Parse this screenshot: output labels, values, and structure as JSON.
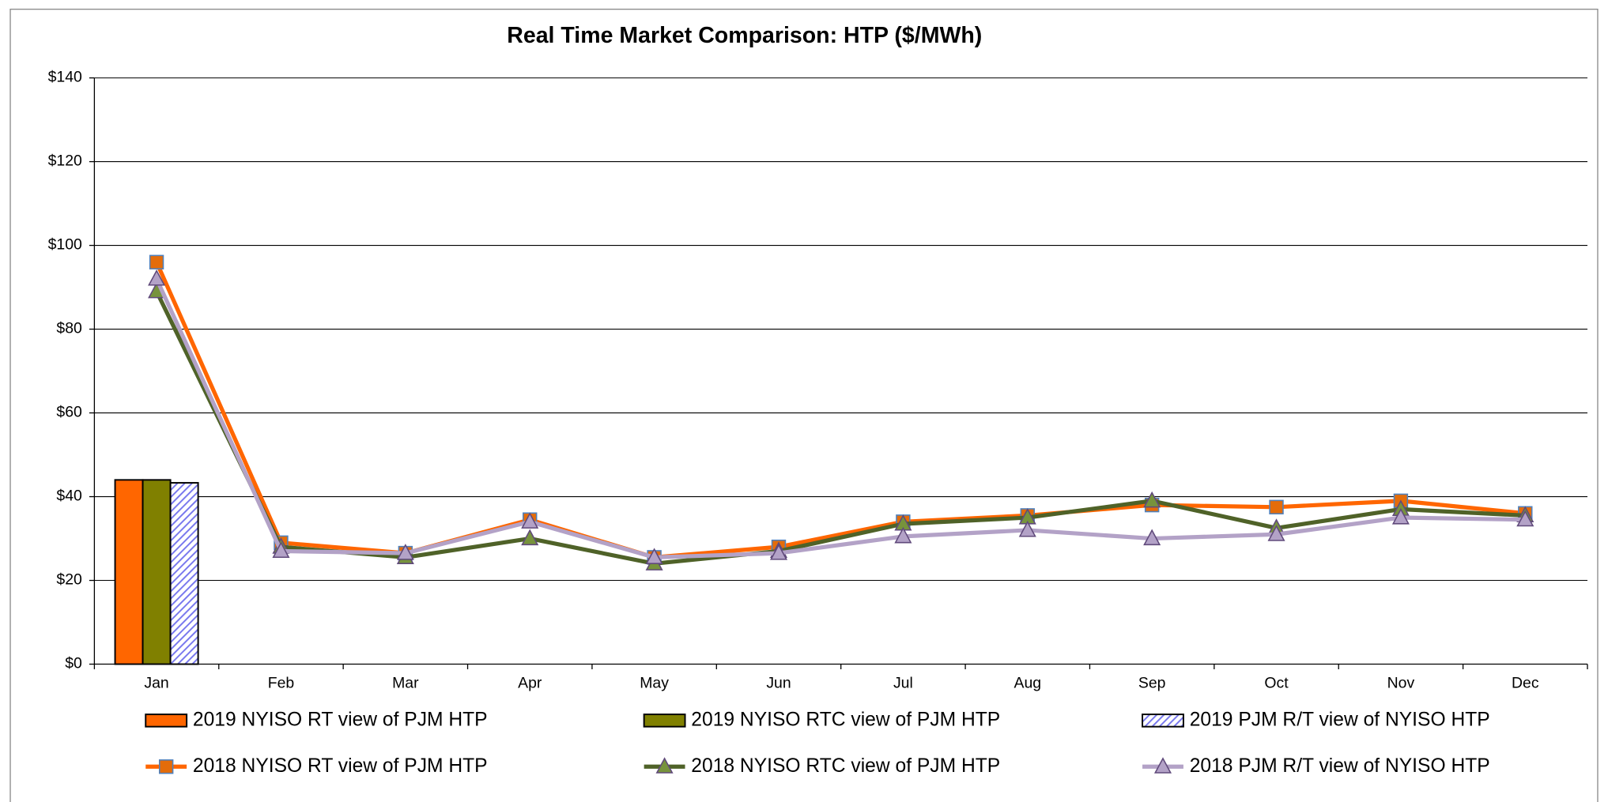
{
  "chart_data": {
    "type": "combo",
    "title": "Real Time Market Comparison: HTP ($/MWh)",
    "categories": [
      "Jan",
      "Feb",
      "Mar",
      "Apr",
      "May",
      "Jun",
      "Jul",
      "Aug",
      "Sep",
      "Oct",
      "Nov",
      "Dec"
    ],
    "ylim": [
      0,
      140
    ],
    "yticks": [
      {
        "value": 0,
        "label": "$0"
      },
      {
        "value": 20,
        "label": "$20"
      },
      {
        "value": 40,
        "label": "$40"
      },
      {
        "value": 60,
        "label": "$60"
      },
      {
        "value": 80,
        "label": "$80"
      },
      {
        "value": 100,
        "label": "$100"
      },
      {
        "value": 120,
        "label": "$120"
      },
      {
        "value": 140,
        "label": "$140"
      }
    ],
    "grid": true,
    "series": [
      {
        "name": "2019 NYISO RT view of PJM  HTP",
        "type": "bar",
        "color": "#ff6600",
        "values": [
          44,
          null,
          null,
          null,
          null,
          null,
          null,
          null,
          null,
          null,
          null,
          null
        ]
      },
      {
        "name": "2019 NYISO RTC view of PJM  HTP",
        "type": "bar",
        "color": "#808000",
        "values": [
          44,
          null,
          null,
          null,
          null,
          null,
          null,
          null,
          null,
          null,
          null,
          null
        ]
      },
      {
        "name": "2019 PJM R/T view of NYISO  HTP",
        "type": "bar",
        "color": "#9999ff",
        "pattern": "hatch",
        "values": [
          43.3,
          null,
          null,
          null,
          null,
          null,
          null,
          null,
          null,
          null,
          null,
          null
        ]
      },
      {
        "name": "2018 NYISO RT view of PJM  HTP",
        "type": "line",
        "color": "#ff6600",
        "marker": "square",
        "marker_color": "#e46c0a",
        "values": [
          96,
          29,
          26.5,
          34.5,
          25.5,
          28,
          34,
          35.5,
          38,
          37.5,
          39,
          36
        ]
      },
      {
        "name": "2018 NYISO RTC view of PJM  HTP",
        "type": "line",
        "color": "#4f6228",
        "marker": "triangle",
        "marker_color": "#77933c",
        "values": [
          89,
          28,
          25.5,
          30,
          24,
          27,
          33.5,
          35,
          39,
          32.5,
          37,
          35.5
        ]
      },
      {
        "name": "2018 PJM R/T view of NYISO  HTP",
        "type": "line",
        "color": "#b3a2c7",
        "marker": "triangle",
        "marker_color": "#b3a2c7",
        "values": [
          92,
          27,
          26.5,
          34,
          25.5,
          26.5,
          30.5,
          32,
          30,
          31,
          35,
          34.5
        ]
      }
    ]
  }
}
